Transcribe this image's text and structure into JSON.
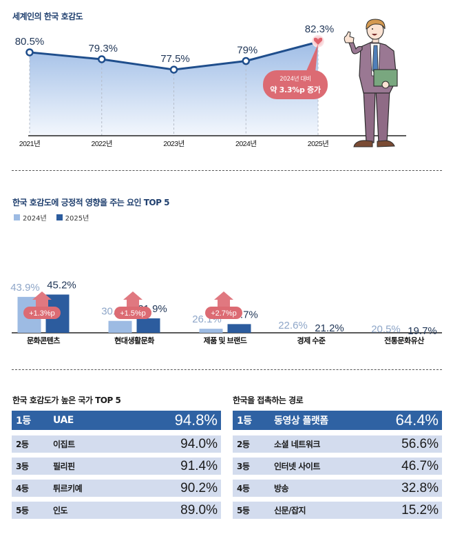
{
  "section1": {
    "title": "세계인의 한국 호감도",
    "callout": {
      "line1": "2024년 대비",
      "line2": "약 3.3%p 증가"
    }
  },
  "section2": {
    "title": "한국 호감도에 긍정적 영향을 주는 요인 TOP 5",
    "legend": [
      "2024년",
      "2025년"
    ]
  },
  "section3": {
    "left": {
      "title": "한국 호감도가 높은 국가 TOP 5",
      "rows": [
        {
          "rank": "1등",
          "name": "UAE",
          "value": "94.8%"
        },
        {
          "rank": "2등",
          "name": "이집트",
          "value": "94.0%"
        },
        {
          "rank": "3등",
          "name": "필리핀",
          "value": "91.4%"
        },
        {
          "rank": "4등",
          "name": "튀르키예",
          "value": "90.2%"
        },
        {
          "rank": "5등",
          "name": "인도",
          "value": "89.0%"
        }
      ]
    },
    "right": {
      "title": "한국을 접촉하는 경로",
      "rows": [
        {
          "rank": "1등",
          "name": "동영상 플랫폼",
          "value": "64.4%"
        },
        {
          "rank": "2등",
          "name": "소셜 네트워크",
          "value": "56.6%"
        },
        {
          "rank": "3등",
          "name": "인터넷 사이트",
          "value": "46.7%"
        },
        {
          "rank": "4등",
          "name": "방송",
          "value": "32.8%"
        },
        {
          "rank": "5등",
          "name": "신문/잡지",
          "value": "15.2%"
        }
      ]
    }
  },
  "colors": {
    "navy": "#1f4e8c",
    "light_bar": "#9dbbe3",
    "dark_bar": "#2c5c9e",
    "accent_pink": "#dc6b73",
    "row_bg": "#d3dcee",
    "row_first_bg": "#2f62a3"
  },
  "chart_data": [
    {
      "type": "line",
      "title": "세계인의 한국 호감도",
      "x": [
        "2021년",
        "2022년",
        "2023년",
        "2024년",
        "2025년"
      ],
      "values": [
        80.5,
        79.3,
        77.5,
        79,
        82.3
      ],
      "labels": [
        "80.5%",
        "79.3%",
        "77.5%",
        "79%",
        "82.3%"
      ],
      "xlabel": "",
      "ylabel": "",
      "unit": "%",
      "annotation": "2024년 대비 약 3.3%p 증가",
      "grid": false
    },
    {
      "type": "bar",
      "title": "한국 호감도에 긍정적 영향을 주는 요인 TOP 5",
      "categories": [
        "문화콘텐츠",
        "현대생활문화",
        "제품 및 브랜드",
        "경제 수준",
        "전통문화유산"
      ],
      "series": [
        {
          "name": "2024년",
          "values": [
            43.9,
            30.5,
            26.1,
            22.6,
            20.5
          ]
        },
        {
          "name": "2025년",
          "values": [
            45.2,
            31.9,
            28.7,
            21.2,
            19.7
          ]
        }
      ],
      "change_badges": [
        "+1.3%p",
        "+1.5%p",
        "+2.7%p",
        null,
        null
      ],
      "legend": "top-left",
      "unit": "%",
      "grid": false
    }
  ]
}
